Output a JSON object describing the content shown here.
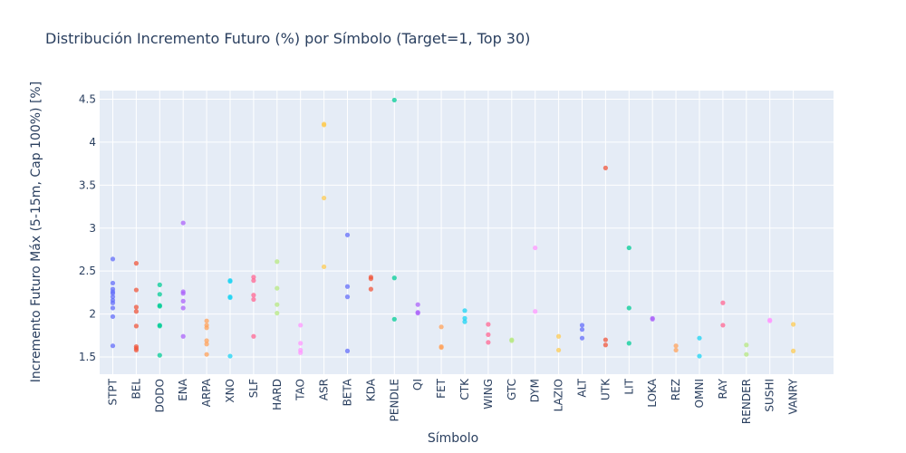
{
  "chart_data": {
    "type": "scatter",
    "title": "Distribución Incremento Futuro (%) por Símbolo (Target=1, Top 30)",
    "xlabel": "Símbolo",
    "ylabel": "Incremento Futuro Máx (5-15m, Cap 100%) [%]",
    "ylim": [
      1.3,
      4.6
    ],
    "yticks": [
      1.5,
      2,
      2.5,
      3,
      3.5,
      4,
      4.5
    ],
    "ytick_labels": [
      "1.5",
      "2",
      "2.5",
      "3",
      "3.5",
      "4",
      "4.5"
    ],
    "grid": true,
    "background": "#e5ecf6",
    "series": [
      {
        "category": "STPT",
        "color": "#636efa",
        "values": [
          2.64,
          2.36,
          2.29,
          2.26,
          2.24,
          2.2,
          2.16,
          2.13,
          2.07,
          1.97,
          1.63
        ]
      },
      {
        "category": "BEL",
        "color": "#ef553b",
        "values": [
          2.59,
          2.28,
          2.08,
          2.03,
          1.86,
          1.62,
          1.6,
          1.58
        ]
      },
      {
        "category": "DODO",
        "color": "#00cc96",
        "values": [
          2.34,
          2.23,
          2.1,
          2.09,
          1.87,
          1.86,
          1.52
        ]
      },
      {
        "category": "ENA",
        "color": "#ab63fa",
        "values": [
          3.06,
          2.26,
          2.24,
          2.15,
          2.07,
          1.74
        ]
      },
      {
        "category": "ARPA",
        "color": "#ffa15a",
        "values": [
          1.92,
          1.87,
          1.84,
          1.69,
          1.65,
          1.53
        ]
      },
      {
        "category": "XNO",
        "color": "#19d3f3",
        "values": [
          2.39,
          2.38,
          2.2,
          2.19,
          1.51
        ]
      },
      {
        "category": "SLF",
        "color": "#ff6692",
        "values": [
          2.43,
          2.39,
          2.22,
          2.17,
          1.74
        ]
      },
      {
        "category": "HARD",
        "color": "#b6e880",
        "values": [
          2.61,
          2.3,
          2.11,
          2.01
        ]
      },
      {
        "category": "TAO",
        "color": "#ff97ff",
        "values": [
          1.87,
          1.66,
          1.58,
          1.55
        ]
      },
      {
        "category": "ASR",
        "color": "#fecb52",
        "values": [
          4.21,
          4.2,
          3.35,
          2.55
        ]
      },
      {
        "category": "BETA",
        "color": "#636efa",
        "values": [
          2.92,
          2.32,
          2.2,
          1.57
        ]
      },
      {
        "category": "KDA",
        "color": "#ef553b",
        "values": [
          2.43,
          2.41,
          2.29
        ]
      },
      {
        "category": "PENDLE",
        "color": "#00cc96",
        "values": [
          4.49,
          2.42,
          1.94
        ]
      },
      {
        "category": "QI",
        "color": "#ab63fa",
        "values": [
          2.11,
          2.02,
          2.01
        ]
      },
      {
        "category": "FET",
        "color": "#ffa15a",
        "values": [
          1.85,
          1.62,
          1.61
        ]
      },
      {
        "category": "CTK",
        "color": "#19d3f3",
        "values": [
          2.04,
          1.95,
          1.91
        ]
      },
      {
        "category": "WING",
        "color": "#ff6692",
        "values": [
          1.88,
          1.76,
          1.67
        ]
      },
      {
        "category": "GTC",
        "color": "#b6e880",
        "values": [
          1.7,
          1.69
        ]
      },
      {
        "category": "DYM",
        "color": "#ff97ff",
        "values": [
          2.77,
          2.03
        ]
      },
      {
        "category": "LAZIO",
        "color": "#fecb52",
        "values": [
          1.74,
          1.58
        ]
      },
      {
        "category": "ALT",
        "color": "#636efa",
        "values": [
          1.87,
          1.82,
          1.72
        ]
      },
      {
        "category": "UTK",
        "color": "#ef553b",
        "values": [
          3.7,
          1.7,
          1.64
        ]
      },
      {
        "category": "LIT",
        "color": "#00cc96",
        "values": [
          2.77,
          2.07,
          1.66
        ]
      },
      {
        "category": "LOKA",
        "color": "#ab63fa",
        "values": [
          1.95,
          1.94
        ]
      },
      {
        "category": "REZ",
        "color": "#ffa15a",
        "values": [
          1.63,
          1.58
        ]
      },
      {
        "category": "OMNI",
        "color": "#19d3f3",
        "values": [
          1.72,
          1.51
        ]
      },
      {
        "category": "RAY",
        "color": "#ff6692",
        "values": [
          2.13,
          1.87
        ]
      },
      {
        "category": "RENDER",
        "color": "#b6e880",
        "values": [
          1.64,
          1.53
        ]
      },
      {
        "category": "SUSHI",
        "color": "#ff97ff",
        "values": [
          1.93,
          1.92
        ]
      },
      {
        "category": "VANRY",
        "color": "#fecb52",
        "values": [
          1.88,
          1.57
        ]
      }
    ]
  }
}
